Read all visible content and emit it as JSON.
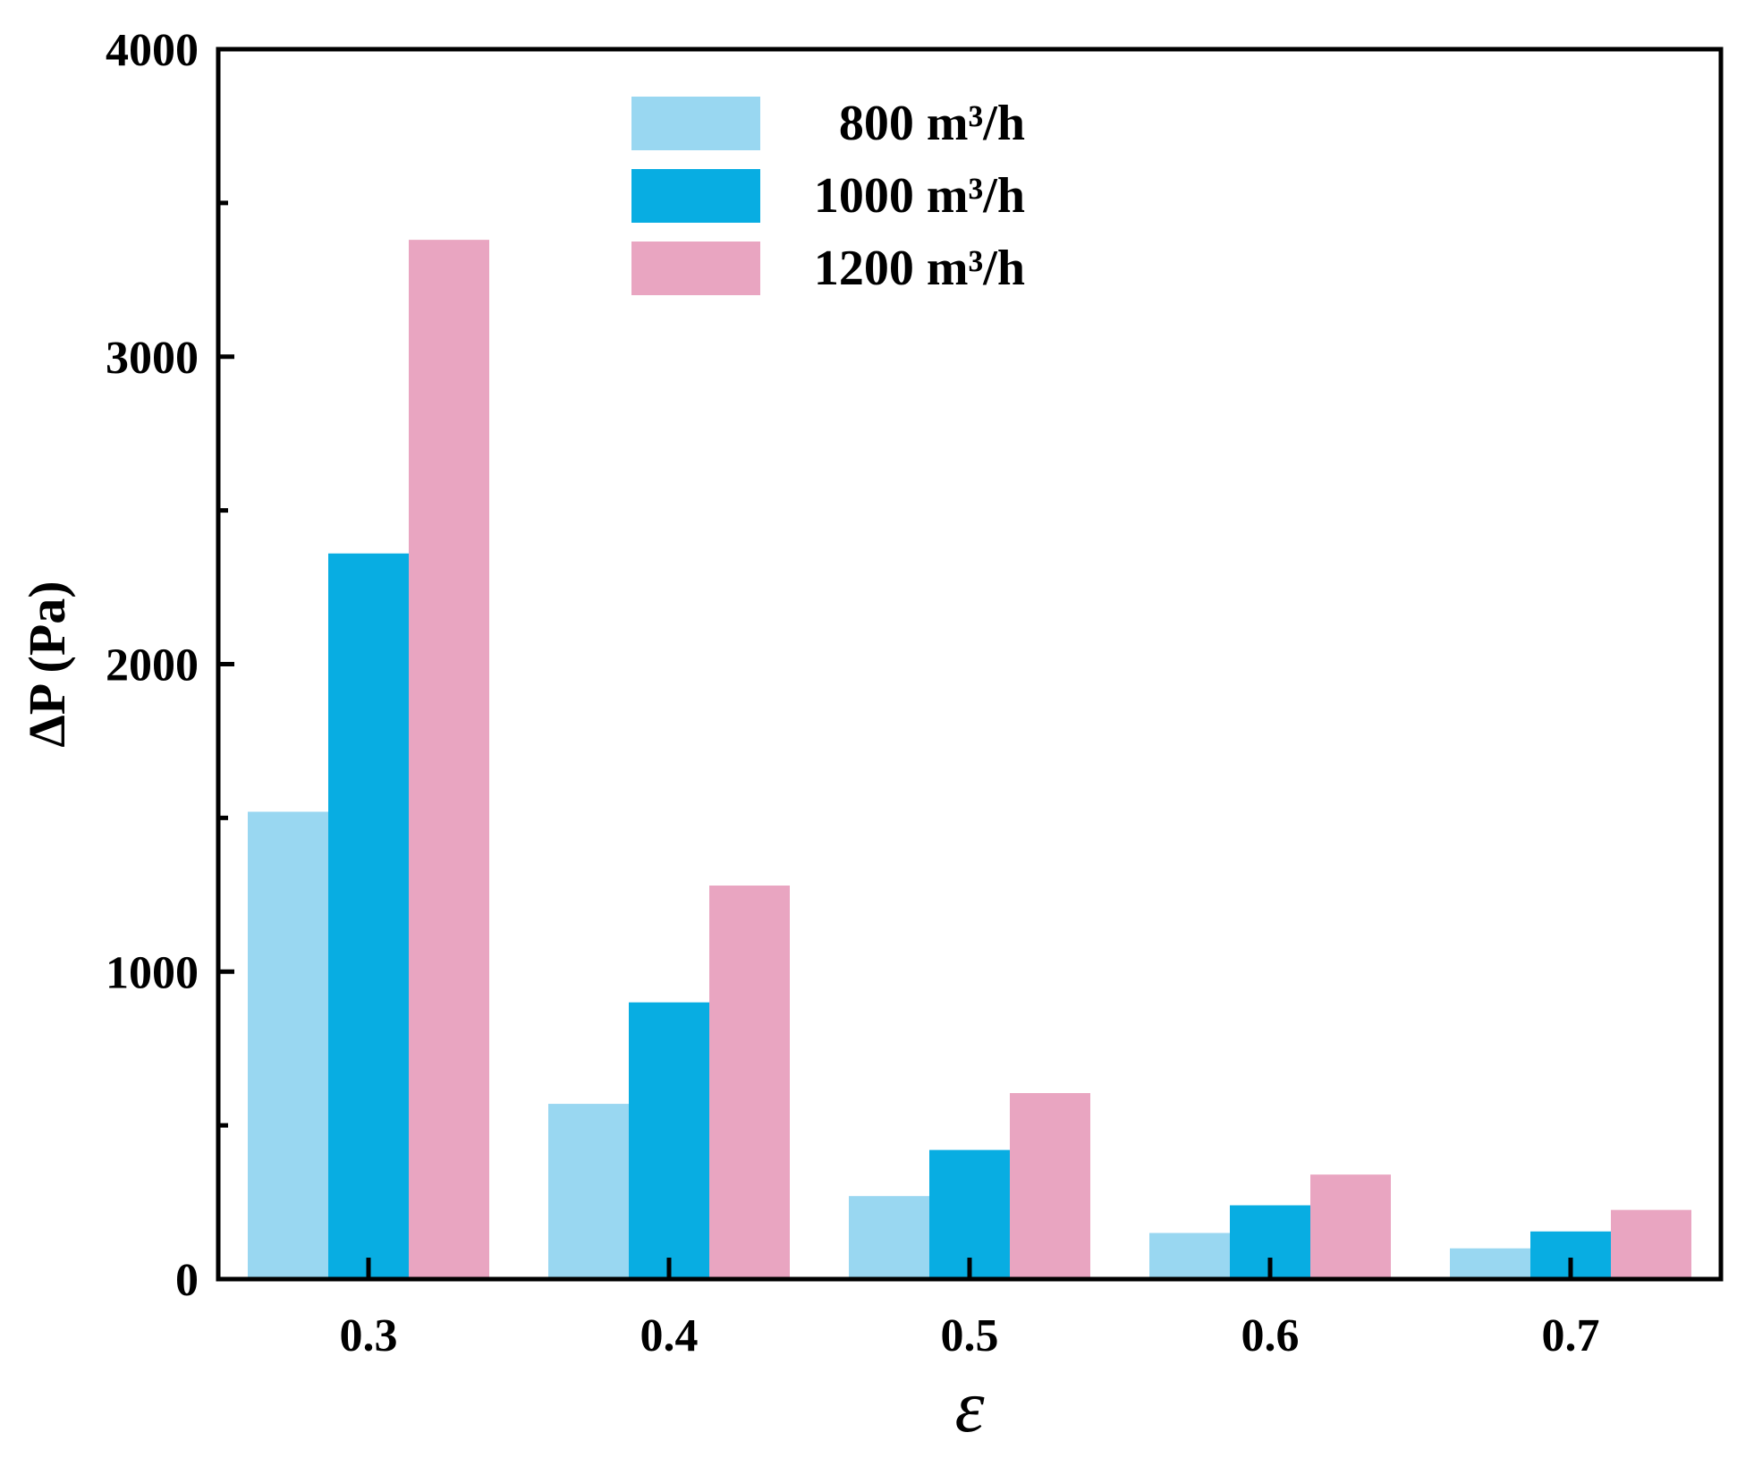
{
  "chart_data": {
    "type": "bar",
    "title": "",
    "xlabel": "ε",
    "ylabel": "ΔP (Pa)",
    "categories": [
      "0.3",
      "0.4",
      "0.5",
      "0.6",
      "0.7"
    ],
    "ylim": [
      0,
      4000
    ],
    "yticks": [
      "0",
      "1000",
      "2000",
      "3000",
      "4000"
    ],
    "y_minor_step": 500,
    "legend_position": "top-center",
    "series": [
      {
        "name": "800 m³/h",
        "color": "#99d7f1",
        "values": [
          1520,
          570,
          270,
          150,
          100
        ]
      },
      {
        "name": "1000 m³/h",
        "color": "#08ade2",
        "values": [
          2360,
          900,
          420,
          240,
          155
        ]
      },
      {
        "name": "1200 m³/h",
        "color": "#e9a5c1",
        "values": [
          3380,
          1280,
          605,
          340,
          225
        ]
      }
    ]
  }
}
